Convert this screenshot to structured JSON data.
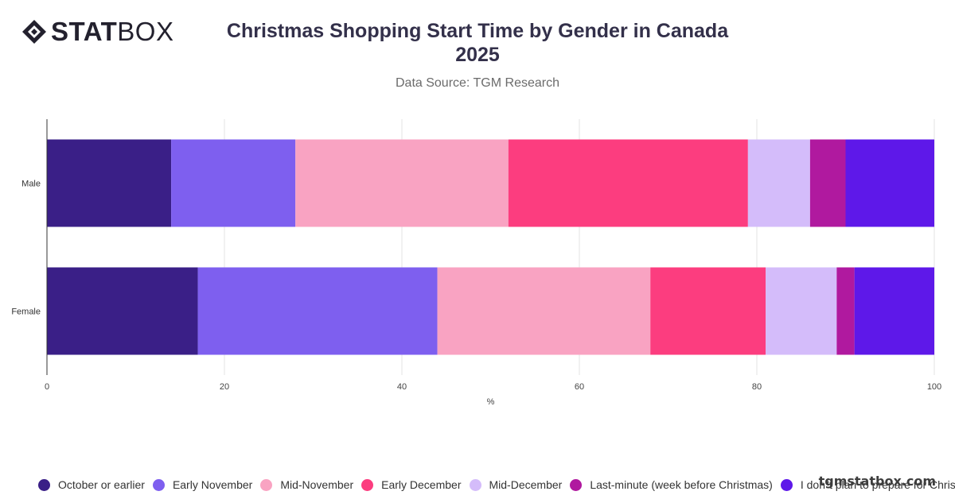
{
  "brand": {
    "logo_bold": "STAT",
    "logo_light": "BOX",
    "watermark": "tgmstatbox.com"
  },
  "header": {
    "title_line1": "Christmas Shopping Start Time by Gender in Canada",
    "title_line2": "2025",
    "subtitle": "Data Source: TGM Research"
  },
  "chart_data": {
    "type": "bar",
    "orientation": "horizontal",
    "stacked": true,
    "title": "Christmas Shopping Start Time by Gender in Canada 2025",
    "subtitle": "Data Source: TGM Research",
    "categories": [
      "Male",
      "Female"
    ],
    "xlabel": "%",
    "ylabel": "",
    "xlim": [
      0,
      100
    ],
    "xticks": [
      0,
      20,
      40,
      60,
      80,
      100
    ],
    "grid": true,
    "legend_position": "bottom",
    "series": [
      {
        "name": "October or earlier",
        "color": "#3a1f87",
        "values": [
          14,
          17
        ]
      },
      {
        "name": "Early November",
        "color": "#7e5fef",
        "values": [
          14,
          27
        ]
      },
      {
        "name": "Mid-November",
        "color": "#f9a3c2",
        "values": [
          24,
          24
        ]
      },
      {
        "name": "Early December",
        "color": "#fc3d7f",
        "values": [
          27,
          13
        ]
      },
      {
        "name": "Mid-December",
        "color": "#d4bcfa",
        "values": [
          7,
          8
        ]
      },
      {
        "name": "Last-minute (week before Christmas)",
        "color": "#b0199f",
        "values": [
          4,
          2
        ]
      },
      {
        "name": "I don\"t plan to prepare for Christmas",
        "color": "#5e18e9",
        "values": [
          10,
          9
        ]
      }
    ]
  }
}
